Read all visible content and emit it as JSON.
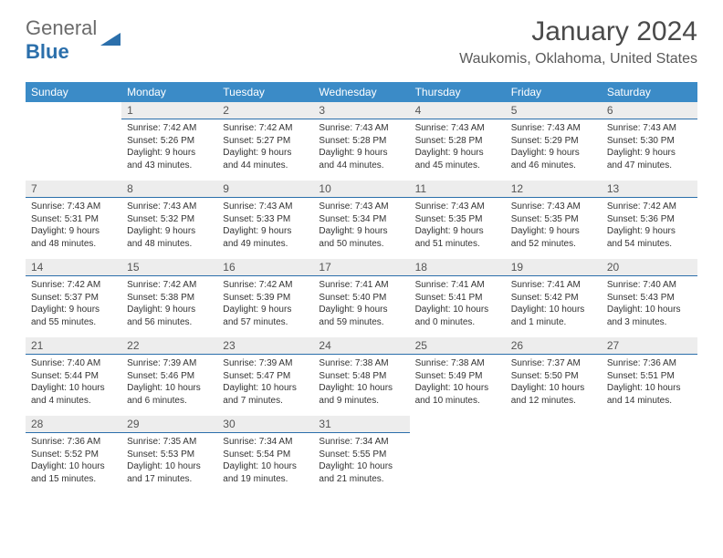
{
  "brand": {
    "text1": "General",
    "text2": "Blue"
  },
  "title": "January 2024",
  "location": "Waukomis, Oklahoma, United States",
  "colors": {
    "header_bg": "#3b8bc7",
    "header_text": "#ffffff",
    "daynum_bg": "#ededed",
    "rule": "#2b6fab",
    "brand_gray": "#6b6b6b",
    "brand_blue": "#2b6fab"
  },
  "weekdays": [
    "Sunday",
    "Monday",
    "Tuesday",
    "Wednesday",
    "Thursday",
    "Friday",
    "Saturday"
  ],
  "label": {
    "sunrise": "Sunrise:",
    "sunset": "Sunset:",
    "daylight": "Daylight:"
  },
  "start_offset": 1,
  "days": [
    {
      "n": 1,
      "sr": "7:42 AM",
      "ss": "5:26 PM",
      "dl": "9 hours and 43 minutes."
    },
    {
      "n": 2,
      "sr": "7:42 AM",
      "ss": "5:27 PM",
      "dl": "9 hours and 44 minutes."
    },
    {
      "n": 3,
      "sr": "7:43 AM",
      "ss": "5:28 PM",
      "dl": "9 hours and 44 minutes."
    },
    {
      "n": 4,
      "sr": "7:43 AM",
      "ss": "5:28 PM",
      "dl": "9 hours and 45 minutes."
    },
    {
      "n": 5,
      "sr": "7:43 AM",
      "ss": "5:29 PM",
      "dl": "9 hours and 46 minutes."
    },
    {
      "n": 6,
      "sr": "7:43 AM",
      "ss": "5:30 PM",
      "dl": "9 hours and 47 minutes."
    },
    {
      "n": 7,
      "sr": "7:43 AM",
      "ss": "5:31 PM",
      "dl": "9 hours and 48 minutes."
    },
    {
      "n": 8,
      "sr": "7:43 AM",
      "ss": "5:32 PM",
      "dl": "9 hours and 48 minutes."
    },
    {
      "n": 9,
      "sr": "7:43 AM",
      "ss": "5:33 PM",
      "dl": "9 hours and 49 minutes."
    },
    {
      "n": 10,
      "sr": "7:43 AM",
      "ss": "5:34 PM",
      "dl": "9 hours and 50 minutes."
    },
    {
      "n": 11,
      "sr": "7:43 AM",
      "ss": "5:35 PM",
      "dl": "9 hours and 51 minutes."
    },
    {
      "n": 12,
      "sr": "7:43 AM",
      "ss": "5:35 PM",
      "dl": "9 hours and 52 minutes."
    },
    {
      "n": 13,
      "sr": "7:42 AM",
      "ss": "5:36 PM",
      "dl": "9 hours and 54 minutes."
    },
    {
      "n": 14,
      "sr": "7:42 AM",
      "ss": "5:37 PM",
      "dl": "9 hours and 55 minutes."
    },
    {
      "n": 15,
      "sr": "7:42 AM",
      "ss": "5:38 PM",
      "dl": "9 hours and 56 minutes."
    },
    {
      "n": 16,
      "sr": "7:42 AM",
      "ss": "5:39 PM",
      "dl": "9 hours and 57 minutes."
    },
    {
      "n": 17,
      "sr": "7:41 AM",
      "ss": "5:40 PM",
      "dl": "9 hours and 59 minutes."
    },
    {
      "n": 18,
      "sr": "7:41 AM",
      "ss": "5:41 PM",
      "dl": "10 hours and 0 minutes."
    },
    {
      "n": 19,
      "sr": "7:41 AM",
      "ss": "5:42 PM",
      "dl": "10 hours and 1 minute."
    },
    {
      "n": 20,
      "sr": "7:40 AM",
      "ss": "5:43 PM",
      "dl": "10 hours and 3 minutes."
    },
    {
      "n": 21,
      "sr": "7:40 AM",
      "ss": "5:44 PM",
      "dl": "10 hours and 4 minutes."
    },
    {
      "n": 22,
      "sr": "7:39 AM",
      "ss": "5:46 PM",
      "dl": "10 hours and 6 minutes."
    },
    {
      "n": 23,
      "sr": "7:39 AM",
      "ss": "5:47 PM",
      "dl": "10 hours and 7 minutes."
    },
    {
      "n": 24,
      "sr": "7:38 AM",
      "ss": "5:48 PM",
      "dl": "10 hours and 9 minutes."
    },
    {
      "n": 25,
      "sr": "7:38 AM",
      "ss": "5:49 PM",
      "dl": "10 hours and 10 minutes."
    },
    {
      "n": 26,
      "sr": "7:37 AM",
      "ss": "5:50 PM",
      "dl": "10 hours and 12 minutes."
    },
    {
      "n": 27,
      "sr": "7:36 AM",
      "ss": "5:51 PM",
      "dl": "10 hours and 14 minutes."
    },
    {
      "n": 28,
      "sr": "7:36 AM",
      "ss": "5:52 PM",
      "dl": "10 hours and 15 minutes."
    },
    {
      "n": 29,
      "sr": "7:35 AM",
      "ss": "5:53 PM",
      "dl": "10 hours and 17 minutes."
    },
    {
      "n": 30,
      "sr": "7:34 AM",
      "ss": "5:54 PM",
      "dl": "10 hours and 19 minutes."
    },
    {
      "n": 31,
      "sr": "7:34 AM",
      "ss": "5:55 PM",
      "dl": "10 hours and 21 minutes."
    }
  ]
}
